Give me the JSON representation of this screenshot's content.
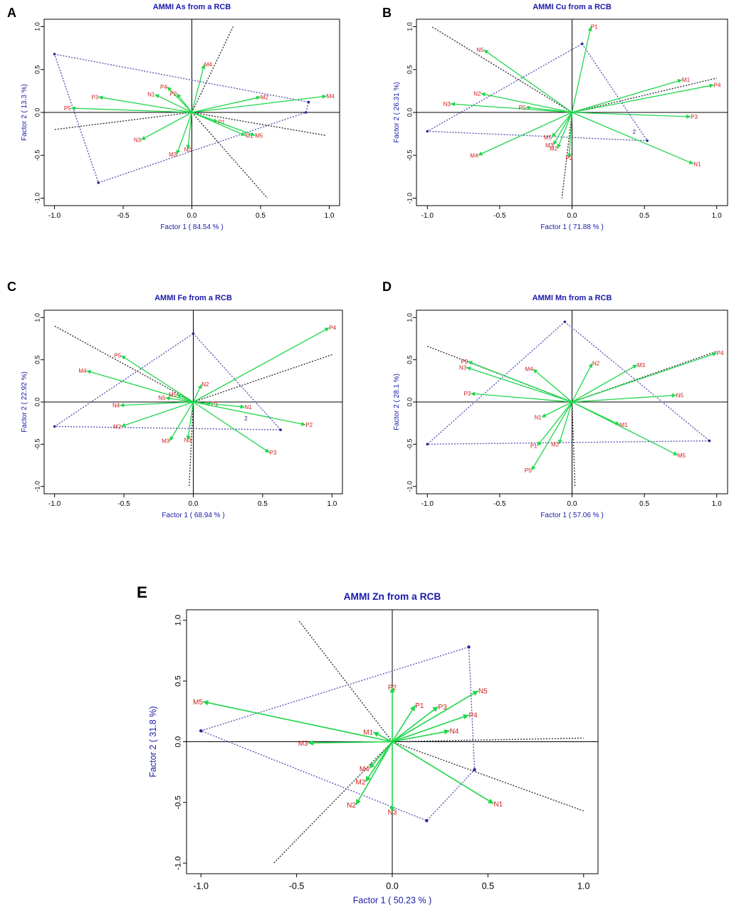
{
  "figure": {
    "panels": [
      "A",
      "B",
      "C",
      "D",
      "E"
    ]
  },
  "chart_data": [
    {
      "type": "scatter",
      "panel": "A",
      "title": "AMMI As from a RCB",
      "xlabel": "Factor 1 ( 84.54 % )",
      "ylabel": "Factor 2 ( 13.3 %)",
      "xlim": [
        -1.0,
        1.0
      ],
      "ylim": [
        -1.0,
        1.0
      ],
      "xticks": [
        "-1.0",
        "-0.5",
        "0.0",
        "0.5",
        "1.0"
      ],
      "yticks": [
        "-1.0",
        "-0.5",
        "0.0",
        "0.5",
        "1.0"
      ],
      "vectors": [
        {
          "label": "M4",
          "x": 0.09,
          "y": 0.56
        },
        {
          "label": "P4",
          "x": -0.18,
          "y": 0.3
        },
        {
          "label": "N1",
          "x": -0.27,
          "y": 0.21
        },
        {
          "label": "P2",
          "x": -0.11,
          "y": 0.22
        },
        {
          "label": "P3",
          "x": -0.68,
          "y": 0.18
        },
        {
          "label": "P5",
          "x": -0.88,
          "y": 0.05
        },
        {
          "label": "N3",
          "x": -0.37,
          "y": -0.32
        },
        {
          "label": "M3",
          "x": -0.11,
          "y": -0.49
        },
        {
          "label": "N2",
          "x": -0.03,
          "y": -0.43
        },
        {
          "label": "P1",
          "x": 0.19,
          "y": -0.11
        },
        {
          "label": "M1",
          "x": 0.39,
          "y": -0.27
        },
        {
          "label": "M5",
          "x": 0.46,
          "y": -0.27
        },
        {
          "label": "M2",
          "x": 0.5,
          "y": 0.18
        },
        {
          "label": "M4",
          "x": 0.98,
          "y": 0.19
        }
      ],
      "hull": [
        [
          -1.0,
          0.68
        ],
        [
          0.85,
          0.12
        ],
        [
          0.83,
          0.0
        ],
        [
          -0.68,
          -0.82
        ]
      ],
      "sectors": [
        [
          0.3,
          1.0
        ],
        [
          0.98,
          -0.27
        ],
        [
          0.55,
          -1.0
        ],
        [
          -1.0,
          -0.2
        ]
      ]
    },
    {
      "type": "scatter",
      "panel": "B",
      "title": "AMMI Cu from a RCB",
      "xlabel": "Factor 1 ( 71.88 % )",
      "ylabel": "Factor 2 ( 26.31 %)",
      "xlim": [
        -1.0,
        1.0
      ],
      "ylim": [
        -1.0,
        1.0
      ],
      "xticks": [
        "-1.0",
        "-0.5",
        "0.0",
        "0.5",
        "1.0"
      ],
      "yticks": [
        "-1.0",
        "-0.5",
        "0.0",
        "0.5",
        "1.0"
      ],
      "vectors": [
        {
          "label": "P1",
          "x": 0.13,
          "y": 1.0
        },
        {
          "label": "N5",
          "x": -0.61,
          "y": 0.73
        },
        {
          "label": "N2",
          "x": -0.63,
          "y": 0.22
        },
        {
          "label": "N3",
          "x": -0.84,
          "y": 0.1
        },
        {
          "label": "P5",
          "x": -0.32,
          "y": 0.06
        },
        {
          "label": "M1",
          "x": 0.76,
          "y": 0.38
        },
        {
          "label": "P4",
          "x": 0.98,
          "y": 0.32
        },
        {
          "label": "P3",
          "x": 0.82,
          "y": -0.05
        },
        {
          "label": "N1",
          "x": 0.84,
          "y": -0.6
        },
        {
          "label": "M4",
          "x": -0.65,
          "y": -0.5
        },
        {
          "label": "M5",
          "x": -0.14,
          "y": -0.29
        },
        {
          "label": "M3",
          "x": -0.13,
          "y": -0.38
        },
        {
          "label": "M2",
          "x": -0.1,
          "y": -0.42
        },
        {
          "label": "P2",
          "x": -0.02,
          "y": -0.53
        }
      ],
      "annotations": [
        "2"
      ],
      "hull": [
        [
          0.07,
          0.8
        ],
        [
          0.52,
          -0.33
        ],
        [
          -1.0,
          -0.22
        ]
      ],
      "sectors": [
        [
          -0.97,
          1.0
        ],
        [
          1.0,
          0.4
        ],
        [
          -0.07,
          -1.0
        ]
      ]
    },
    {
      "type": "scatter",
      "panel": "C",
      "title": "AMMI Fe from a RCB",
      "xlabel": "Factor 1 ( 68.94 % )",
      "ylabel": "Factor 2 ( 22.92 %)",
      "xlim": [
        -1.0,
        1.0
      ],
      "ylim": [
        -1.0,
        1.0
      ],
      "xticks": [
        "-1.0",
        "-0.5",
        "0.0",
        "0.5",
        "1.0"
      ],
      "yticks": [
        "-1.0",
        "-0.5",
        "0.0",
        "0.5",
        "1.0"
      ],
      "vectors": [
        {
          "label": "P4",
          "x": 0.98,
          "y": 0.88
        },
        {
          "label": "P5",
          "x": -0.52,
          "y": 0.55
        },
        {
          "label": "M4",
          "x": -0.77,
          "y": 0.37
        },
        {
          "label": "N2",
          "x": 0.06,
          "y": 0.21
        },
        {
          "label": "M5",
          "x": -0.12,
          "y": 0.09
        },
        {
          "label": "N5",
          "x": -0.2,
          "y": 0.05
        },
        {
          "label": "N4",
          "x": -0.53,
          "y": -0.04
        },
        {
          "label": "M2",
          "x": -0.52,
          "y": -0.29
        },
        {
          "label": "M3",
          "x": -0.17,
          "y": -0.46
        },
        {
          "label": "N3",
          "x": -0.04,
          "y": -0.45
        },
        {
          "label": "P1",
          "x": 0.13,
          "y": -0.02
        },
        {
          "label": "N1",
          "x": 0.37,
          "y": -0.06
        },
        {
          "label": "P2",
          "x": 0.81,
          "y": -0.27
        },
        {
          "label": "P3",
          "x": 0.55,
          "y": -0.6
        }
      ],
      "annotations": [
        "2"
      ],
      "hull": [
        [
          0.0,
          0.81
        ],
        [
          0.63,
          -0.33
        ],
        [
          -1.0,
          -0.29
        ]
      ],
      "sectors": [
        [
          -1.0,
          0.9
        ],
        [
          1.0,
          0.56
        ],
        [
          -0.03,
          -1.0
        ]
      ]
    },
    {
      "type": "scatter",
      "panel": "D",
      "title": "AMMI Mn from a RCB",
      "xlabel": "Factor 1 ( 57.06 % )",
      "ylabel": "Factor 2 ( 28.1 %)",
      "xlim": [
        -1.0,
        1.0
      ],
      "ylim": [
        -1.0,
        1.0
      ],
      "xticks": [
        "-1.0",
        "-0.5",
        "0.0",
        "0.5",
        "1.0"
      ],
      "yticks": [
        "-1.0",
        "-0.5",
        "0.0",
        "0.5",
        "1.0"
      ],
      "vectors": [
        {
          "label": "P4",
          "x": 1.0,
          "y": 0.58
        },
        {
          "label": "M3",
          "x": 0.45,
          "y": 0.44
        },
        {
          "label": "N2",
          "x": 0.14,
          "y": 0.46
        },
        {
          "label": "N5",
          "x": 0.72,
          "y": 0.08
        },
        {
          "label": "M1",
          "x": 0.33,
          "y": -0.27
        },
        {
          "label": "M5",
          "x": 0.73,
          "y": -0.63
        },
        {
          "label": "P2",
          "x": -0.72,
          "y": 0.48
        },
        {
          "label": "N3",
          "x": -0.73,
          "y": 0.41
        },
        {
          "label": "M4",
          "x": -0.27,
          "y": 0.39
        },
        {
          "label": "P3",
          "x": -0.7,
          "y": 0.1
        },
        {
          "label": "N1",
          "x": -0.21,
          "y": -0.18
        },
        {
          "label": "P1",
          "x": -0.24,
          "y": -0.52
        },
        {
          "label": "M2",
          "x": -0.09,
          "y": -0.5
        },
        {
          "label": "P5",
          "x": -0.28,
          "y": -0.81
        }
      ],
      "hull": [
        [
          -0.05,
          0.95
        ],
        [
          0.95,
          -0.46
        ],
        [
          -1.0,
          -0.5
        ]
      ],
      "sectors": [
        [
          -1.0,
          0.66
        ],
        [
          1.0,
          0.6
        ],
        [
          0.02,
          -1.0
        ]
      ]
    },
    {
      "type": "scatter",
      "panel": "E",
      "title": "AMMI Zn from a RCB",
      "xlabel": "Factor 1 ( 50.23 % )",
      "ylabel": "Factor 2 ( 31.8 %)",
      "xlim": [
        -1.0,
        1.0
      ],
      "ylim": [
        -1.0,
        1.0
      ],
      "xticks": [
        "-1.0",
        "-0.5",
        "0.0",
        "0.5",
        "1.0"
      ],
      "yticks": [
        "-1.0",
        "-0.5",
        "0.0",
        "0.5",
        "1.0"
      ],
      "vectors": [
        {
          "label": "M5",
          "x": -0.99,
          "y": 0.33
        },
        {
          "label": "P2",
          "x": 0.0,
          "y": 0.45
        },
        {
          "label": "P1",
          "x": 0.12,
          "y": 0.3
        },
        {
          "label": "P3",
          "x": 0.24,
          "y": 0.29
        },
        {
          "label": "N5",
          "x": 0.45,
          "y": 0.42
        },
        {
          "label": "P4",
          "x": 0.4,
          "y": 0.22
        },
        {
          "label": "N4",
          "x": 0.3,
          "y": 0.09
        },
        {
          "label": "M1",
          "x": -0.1,
          "y": 0.08
        },
        {
          "label": "M3",
          "x": -0.44,
          "y": -0.01
        },
        {
          "label": "M4",
          "x": -0.12,
          "y": -0.22
        },
        {
          "label": "M2",
          "x": -0.14,
          "y": -0.33
        },
        {
          "label": "N2",
          "x": -0.19,
          "y": -0.52
        },
        {
          "label": "N3",
          "x": 0.0,
          "y": -0.58
        },
        {
          "label": "N1",
          "x": 0.53,
          "y": -0.51
        }
      ],
      "hull": [
        [
          0.4,
          0.78
        ],
        [
          0.43,
          -0.23
        ],
        [
          0.18,
          -0.65
        ],
        [
          -1.0,
          0.09
        ]
      ],
      "sectors": [
        [
          -0.49,
          1.0
        ],
        [
          1.0,
          0.03
        ],
        [
          1.0,
          -0.57
        ],
        [
          -0.62,
          -1.0
        ]
      ]
    }
  ]
}
